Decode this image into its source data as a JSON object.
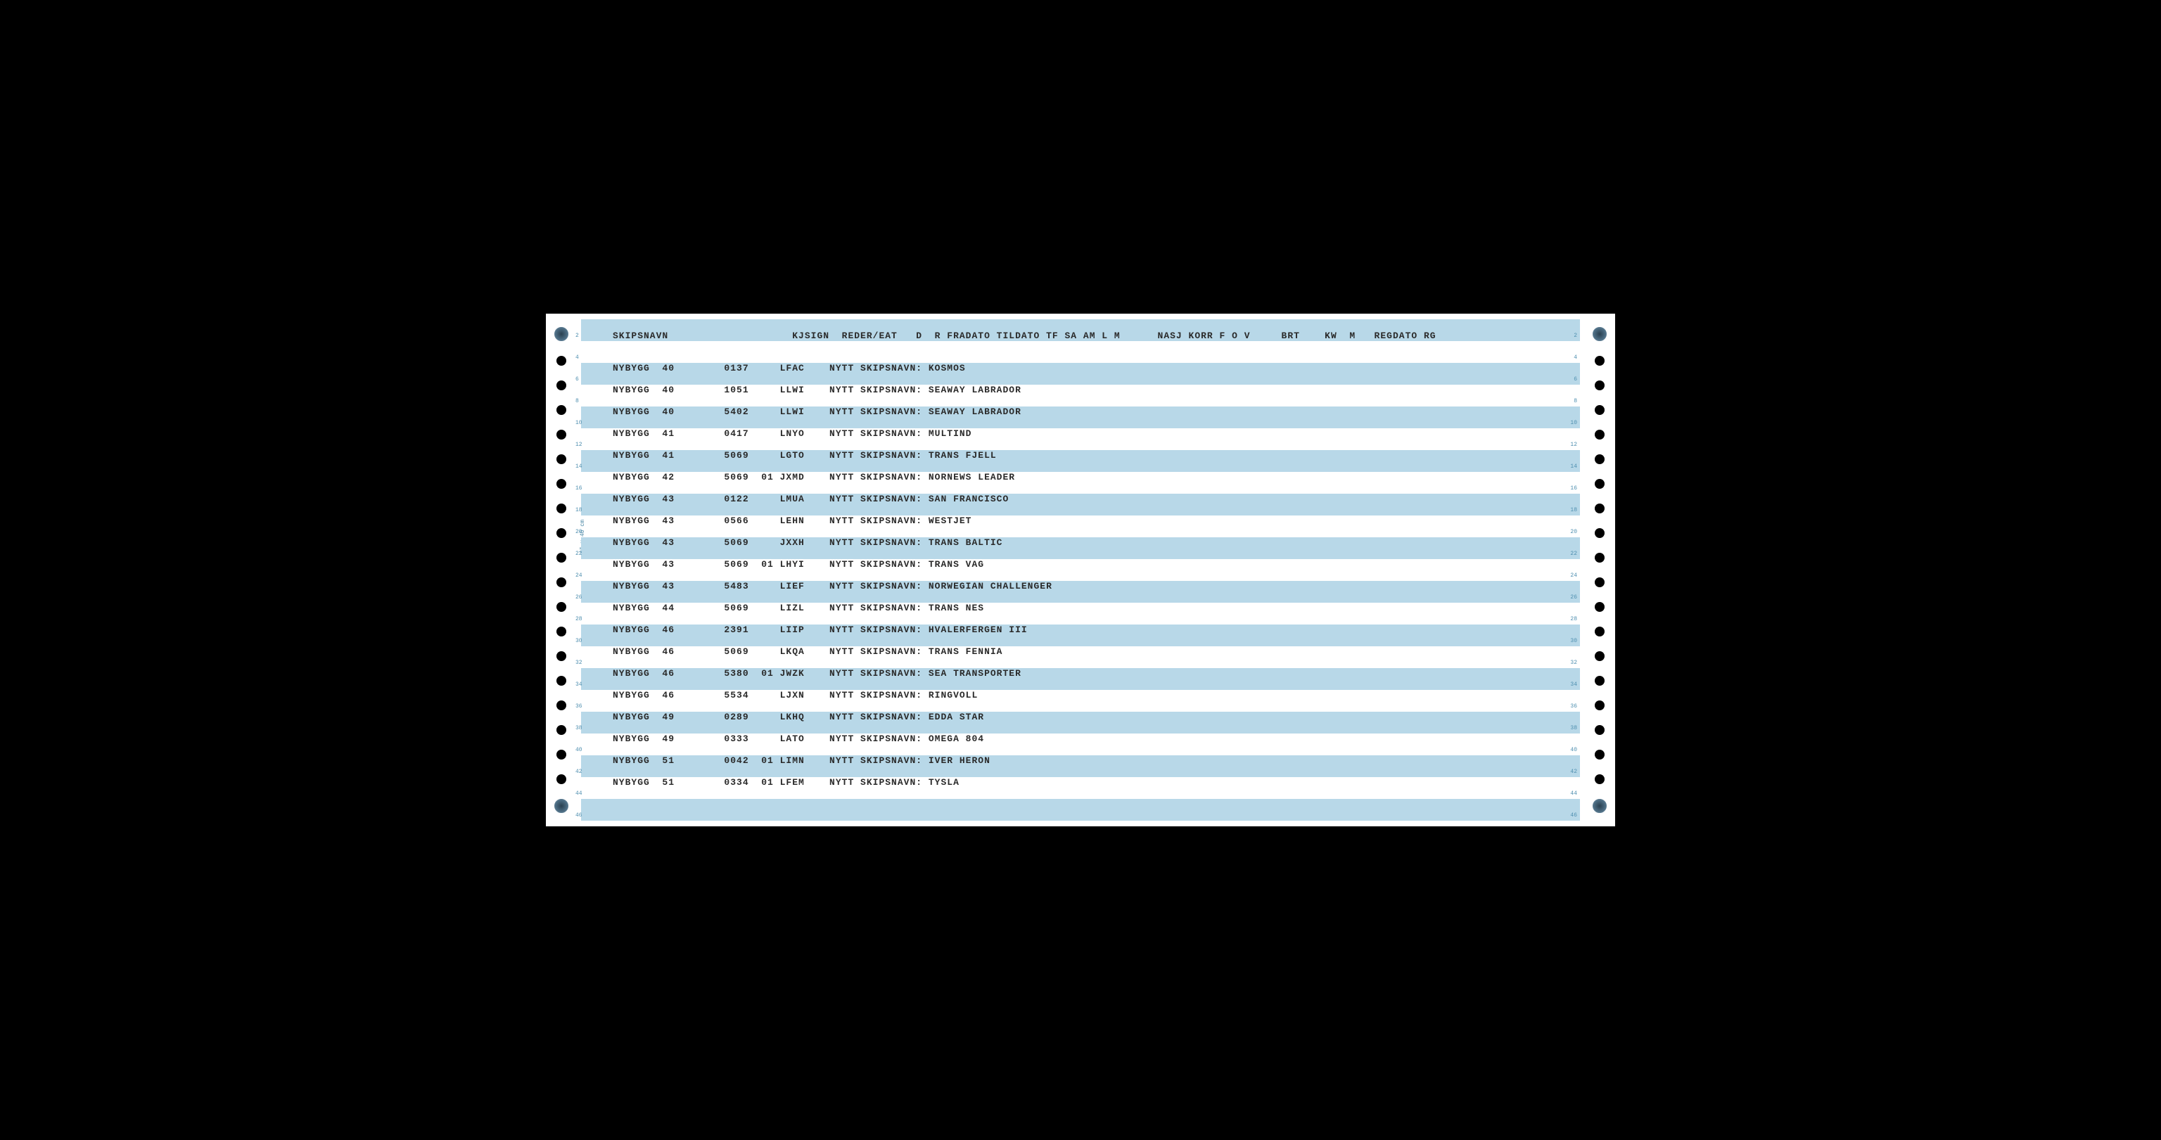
{
  "paper": {
    "background": "#ffffff",
    "stripe_color": "#b8d8e8",
    "text_color": "#2a2a2a",
    "hole_color": "#000000",
    "side_label": "8\" x 40 cm"
  },
  "header": {
    "columns": "SKIPSNAVN                    KJSIGN  REDER/EAT   D  R FRADATO TILDATO TF SA AM L M      NASJ KORR F O V     BRT    KW  M   REGDATO RG"
  },
  "rows": [
    {
      "skipsnavn": "NYBYGG",
      "c2": "40",
      "c3": "0137",
      "c4": "",
      "kjsign": "LFAC",
      "text": "NYTT SKIPSNAVN: KOSMOS"
    },
    {
      "skipsnavn": "NYBYGG",
      "c2": "40",
      "c3": "1051",
      "c4": "",
      "kjsign": "LLWI",
      "text": "NYTT SKIPSNAVN: SEAWAY LABRADOR"
    },
    {
      "skipsnavn": "NYBYGG",
      "c2": "40",
      "c3": "5402",
      "c4": "",
      "kjsign": "LLWI",
      "text": "NYTT SKIPSNAVN: SEAWAY LABRADOR"
    },
    {
      "skipsnavn": "NYBYGG",
      "c2": "41",
      "c3": "0417",
      "c4": "",
      "kjsign": "LNYO",
      "text": "NYTT SKIPSNAVN: MULTIND"
    },
    {
      "skipsnavn": "NYBYGG",
      "c2": "41",
      "c3": "5069",
      "c4": "",
      "kjsign": "LGTO",
      "text": "NYTT SKIPSNAVN: TRANS FJELL"
    },
    {
      "skipsnavn": "NYBYGG",
      "c2": "42",
      "c3": "5069",
      "c4": "01",
      "kjsign": "JXMD",
      "text": "NYTT SKIPSNAVN: NORNEWS LEADER"
    },
    {
      "skipsnavn": "NYBYGG",
      "c2": "43",
      "c3": "0122",
      "c4": "",
      "kjsign": "LMUA",
      "text": "NYTT SKIPSNAVN: SAN FRANCISCO"
    },
    {
      "skipsnavn": "NYBYGG",
      "c2": "43",
      "c3": "0566",
      "c4": "",
      "kjsign": "LEHN",
      "text": "NYTT SKIPSNAVN: WESTJET"
    },
    {
      "skipsnavn": "NYBYGG",
      "c2": "43",
      "c3": "5069",
      "c4": "",
      "kjsign": "JXXH",
      "text": "NYTT SKIPSNAVN: TRANS BALTIC"
    },
    {
      "skipsnavn": "NYBYGG",
      "c2": "43",
      "c3": "5069",
      "c4": "01",
      "kjsign": "LHYI",
      "text": "NYTT SKIPSNAVN: TRANS VAG"
    },
    {
      "skipsnavn": "NYBYGG",
      "c2": "43",
      "c3": "5483",
      "c4": "",
      "kjsign": "LIEF",
      "text": "NYTT SKIPSNAVN: NORWEGIAN CHALLENGER"
    },
    {
      "skipsnavn": "NYBYGG",
      "c2": "44",
      "c3": "5069",
      "c4": "",
      "kjsign": "LIZL",
      "text": "NYTT SKIPSNAVN: TRANS NES"
    },
    {
      "skipsnavn": "NYBYGG",
      "c2": "46",
      "c3": "2391",
      "c4": "",
      "kjsign": "LIIP",
      "text": "NYTT SKIPSNAVN: HVALERFERGEN III"
    },
    {
      "skipsnavn": "NYBYGG",
      "c2": "46",
      "c3": "5069",
      "c4": "",
      "kjsign": "LKQA",
      "text": "NYTT SKIPSNAVN: TRANS FENNIA"
    },
    {
      "skipsnavn": "NYBYGG",
      "c2": "46",
      "c3": "5380",
      "c4": "01",
      "kjsign": "JWZK",
      "text": "NYTT SKIPSNAVN: SEA TRANSPORTER"
    },
    {
      "skipsnavn": "NYBYGG",
      "c2": "46",
      "c3": "5534",
      "c4": "",
      "kjsign": "LJXN",
      "text": "NYTT SKIPSNAVN: RINGVOLL"
    },
    {
      "skipsnavn": "NYBYGG",
      "c2": "49",
      "c3": "0289",
      "c4": "",
      "kjsign": "LKHQ",
      "text": "NYTT SKIPSNAVN: EDDA STAR"
    },
    {
      "skipsnavn": "NYBYGG",
      "c2": "49",
      "c3": "0333",
      "c4": "",
      "kjsign": "LATO",
      "text": "NYTT SKIPSNAVN: OMEGA 804"
    },
    {
      "skipsnavn": "NYBYGG",
      "c2": "51",
      "c3": "0042",
      "c4": "01",
      "kjsign": "LIMN",
      "text": "NYTT SKIPSNAVN: IVER HERON"
    },
    {
      "skipsnavn": "NYBYGG",
      "c2": "51",
      "c3": "0334",
      "c4": "01",
      "kjsign": "LFEM",
      "text": "NYTT SKIPSNAVN: TYSLA"
    }
  ],
  "line_numbers_left": [
    "4",
    "6",
    "8",
    "10",
    "12",
    "14",
    "16",
    "18",
    "20",
    "22",
    "24",
    "26",
    "28",
    "30",
    "32",
    "34",
    "36",
    "38",
    "40",
    "42",
    "44",
    "46"
  ],
  "line_numbers_right": [
    "",
    "6",
    "",
    "10",
    "",
    "14",
    "",
    "18",
    "",
    "",
    "24",
    "",
    "28",
    "",
    "32",
    "",
    "",
    "",
    "",
    "",
    "",
    ""
  ]
}
